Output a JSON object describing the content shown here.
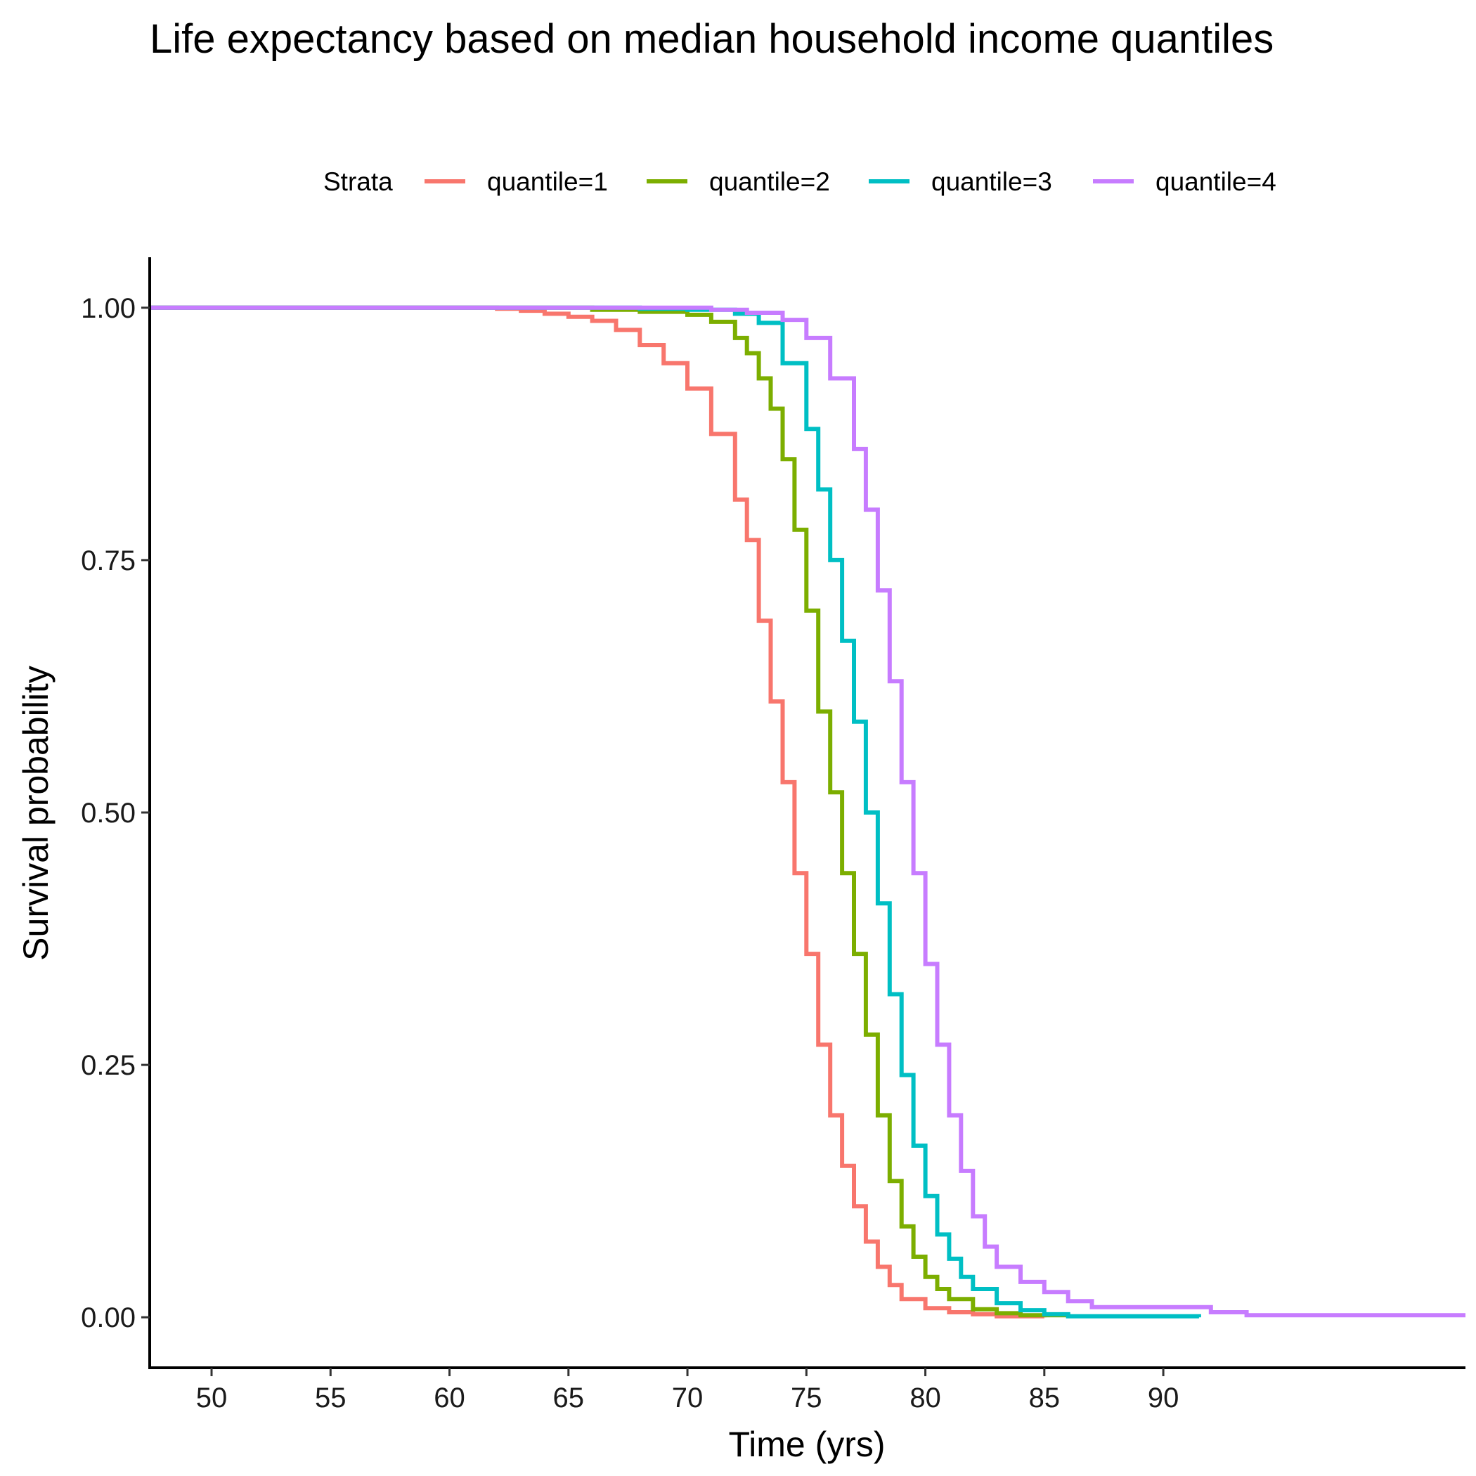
{
  "chart_data": {
    "type": "line",
    "title": "Life expectancy based on median household income quantiles",
    "xlabel": "Time (yrs)",
    "ylabel": "Survival probability",
    "xlim": [
      47.4,
      102.7
    ],
    "ylim": [
      -0.05,
      1.05
    ],
    "xticks": [
      50,
      55,
      60,
      65,
      70,
      75,
      80,
      85,
      90
    ],
    "yticks": [
      0.0,
      0.25,
      0.5,
      0.75,
      1.0
    ],
    "ytick_labels": [
      "0.00",
      "0.25",
      "0.50",
      "0.75",
      "1.00"
    ],
    "grid": false,
    "legend": {
      "title": "Strata",
      "position": "top"
    },
    "series": [
      {
        "name": "quantile=1",
        "color": "#F8766D",
        "step": true,
        "points": [
          [
            47.4,
            1.0
          ],
          [
            61,
            1.0
          ],
          [
            62,
            0.999
          ],
          [
            63,
            0.997
          ],
          [
            64,
            0.994
          ],
          [
            65,
            0.991
          ],
          [
            66,
            0.987
          ],
          [
            67,
            0.978
          ],
          [
            68,
            0.963
          ],
          [
            69,
            0.945
          ],
          [
            70,
            0.92
          ],
          [
            71,
            0.875
          ],
          [
            72,
            0.81
          ],
          [
            72.5,
            0.77
          ],
          [
            73,
            0.69
          ],
          [
            73.5,
            0.61
          ],
          [
            74,
            0.53
          ],
          [
            74.5,
            0.44
          ],
          [
            75,
            0.36
          ],
          [
            75.5,
            0.27
          ],
          [
            76,
            0.2
          ],
          [
            76.5,
            0.15
          ],
          [
            77,
            0.11
          ],
          [
            77.5,
            0.075
          ],
          [
            78,
            0.05
          ],
          [
            78.5,
            0.032
          ],
          [
            79,
            0.018
          ],
          [
            80,
            0.009
          ],
          [
            81,
            0.005
          ],
          [
            82,
            0.003
          ],
          [
            83,
            0.001
          ],
          [
            85,
            0.0
          ]
        ]
      },
      {
        "name": "quantile=2",
        "color": "#7CAE00",
        "step": true,
        "points": [
          [
            47.4,
            1.0
          ],
          [
            64,
            1.0
          ],
          [
            66,
            0.998
          ],
          [
            68,
            0.996
          ],
          [
            70,
            0.993
          ],
          [
            71,
            0.986
          ],
          [
            72,
            0.97
          ],
          [
            72.5,
            0.955
          ],
          [
            73,
            0.93
          ],
          [
            73.5,
            0.9
          ],
          [
            74,
            0.85
          ],
          [
            74.5,
            0.78
          ],
          [
            75,
            0.7
          ],
          [
            75.5,
            0.6
          ],
          [
            76,
            0.52
          ],
          [
            76.5,
            0.44
          ],
          [
            77,
            0.36
          ],
          [
            77.5,
            0.28
          ],
          [
            78,
            0.2
          ],
          [
            78.5,
            0.135
          ],
          [
            79,
            0.09
          ],
          [
            79.5,
            0.06
          ],
          [
            80,
            0.04
          ],
          [
            80.5,
            0.028
          ],
          [
            81,
            0.018
          ],
          [
            82,
            0.008
          ],
          [
            83,
            0.004
          ],
          [
            84,
            0.002
          ],
          [
            86,
            0.0
          ]
        ]
      },
      {
        "name": "quantile=3",
        "color": "#00BFC4",
        "step": true,
        "points": [
          [
            47.4,
            1.0
          ],
          [
            65,
            1.0
          ],
          [
            68,
            0.999
          ],
          [
            70,
            0.998
          ],
          [
            72,
            0.994
          ],
          [
            73,
            0.985
          ],
          [
            74,
            0.945
          ],
          [
            75,
            0.88
          ],
          [
            75.5,
            0.82
          ],
          [
            76,
            0.75
          ],
          [
            76.5,
            0.67
          ],
          [
            77,
            0.59
          ],
          [
            77.5,
            0.5
          ],
          [
            78,
            0.41
          ],
          [
            78.5,
            0.32
          ],
          [
            79,
            0.24
          ],
          [
            79.5,
            0.17
          ],
          [
            80,
            0.12
          ],
          [
            80.5,
            0.082
          ],
          [
            81,
            0.058
          ],
          [
            81.5,
            0.04
          ],
          [
            82,
            0.028
          ],
          [
            83,
            0.014
          ],
          [
            84,
            0.007
          ],
          [
            85,
            0.003
          ],
          [
            86,
            0.001
          ],
          [
            91.5,
            0.0
          ]
        ]
      },
      {
        "name": "quantile=4",
        "color": "#C77CFF",
        "step": true,
        "points": [
          [
            47.4,
            1.0
          ],
          [
            70,
            1.0
          ],
          [
            71,
            0.998
          ],
          [
            72.5,
            0.995
          ],
          [
            74,
            0.988
          ],
          [
            75,
            0.97
          ],
          [
            76,
            0.93
          ],
          [
            77,
            0.86
          ],
          [
            77.5,
            0.8
          ],
          [
            78,
            0.72
          ],
          [
            78.5,
            0.63
          ],
          [
            79,
            0.53
          ],
          [
            79.5,
            0.44
          ],
          [
            80,
            0.35
          ],
          [
            80.5,
            0.27
          ],
          [
            81,
            0.2
          ],
          [
            81.5,
            0.145
          ],
          [
            82,
            0.1
          ],
          [
            82.5,
            0.07
          ],
          [
            83,
            0.05
          ],
          [
            84,
            0.035
          ],
          [
            85,
            0.025
          ],
          [
            86,
            0.016
          ],
          [
            87,
            0.01
          ],
          [
            88,
            0.01
          ],
          [
            91,
            0.01
          ],
          [
            92,
            0.005
          ],
          [
            93.5,
            0.002
          ],
          [
            102.7,
            0.002
          ]
        ]
      }
    ]
  }
}
